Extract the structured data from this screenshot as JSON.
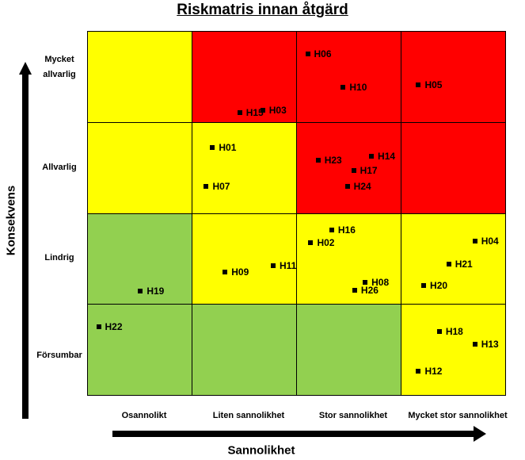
{
  "chart_data": {
    "type": "risk-matrix",
    "title": "Riskmatris innan åtgärd",
    "xlabel": "Sannolikhet",
    "ylabel": "Konsekvens",
    "x_categories": [
      "Osannolikt",
      "Liten sannolikhet",
      "Stor sannolikhet",
      "Mycket stor sannolikhet"
    ],
    "y_categories": [
      "Försumbar",
      "Lindrig",
      "Allvarlig",
      "Mycket allvarlig"
    ],
    "cell_colors": [
      [
        "#92D050",
        "#92D050",
        "#92D050",
        "#FFFF00"
      ],
      [
        "#92D050",
        "#FFFF00",
        "#FFFF00",
        "#FFFF00"
      ],
      [
        "#FFFF00",
        "#FFFF00",
        "#FF0000",
        "#FF0000"
      ],
      [
        "#FFFF00",
        "#FF0000",
        "#FF0000",
        "#FF0000"
      ]
    ],
    "points": [
      {
        "label": "H06",
        "x": 2.11,
        "y": 3.75
      },
      {
        "label": "H10",
        "x": 2.45,
        "y": 3.38
      },
      {
        "label": "H05",
        "x": 3.17,
        "y": 3.41
      },
      {
        "label": "H15",
        "x": 1.46,
        "y": 3.1
      },
      {
        "label": "H03",
        "x": 1.68,
        "y": 3.13
      },
      {
        "label": "H01",
        "x": 1.2,
        "y": 2.72
      },
      {
        "label": "H07",
        "x": 1.14,
        "y": 2.29
      },
      {
        "label": "H23",
        "x": 2.21,
        "y": 2.58
      },
      {
        "label": "H14",
        "x": 2.72,
        "y": 2.62
      },
      {
        "label": "H17",
        "x": 2.55,
        "y": 2.47
      },
      {
        "label": "H24",
        "x": 2.49,
        "y": 2.29
      },
      {
        "label": "H16",
        "x": 2.34,
        "y": 1.81
      },
      {
        "label": "H02",
        "x": 2.14,
        "y": 1.67
      },
      {
        "label": "H04",
        "x": 3.71,
        "y": 1.69
      },
      {
        "label": "H21",
        "x": 3.46,
        "y": 1.44
      },
      {
        "label": "H20",
        "x": 3.22,
        "y": 1.2
      },
      {
        "label": "H08",
        "x": 2.66,
        "y": 1.24
      },
      {
        "label": "H26",
        "x": 2.56,
        "y": 1.15
      },
      {
        "label": "H09",
        "x": 1.32,
        "y": 1.35
      },
      {
        "label": "H11",
        "x": 1.78,
        "y": 1.42
      },
      {
        "label": "H19",
        "x": 0.51,
        "y": 1.14
      },
      {
        "label": "H22",
        "x": 0.11,
        "y": 0.75
      },
      {
        "label": "H18",
        "x": 3.37,
        "y": 0.7
      },
      {
        "label": "H13",
        "x": 3.71,
        "y": 0.56
      },
      {
        "label": "H12",
        "x": 3.17,
        "y": 0.26
      }
    ]
  }
}
